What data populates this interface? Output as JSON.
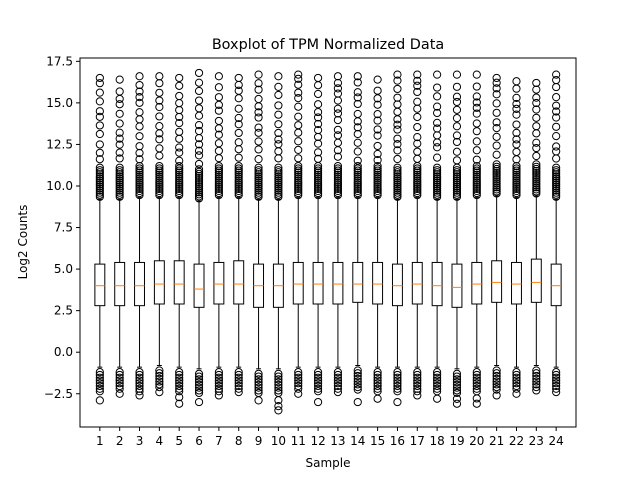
{
  "chart_data": {
    "type": "boxplot",
    "title": "Boxplot of TPM Normalized Data",
    "xlabel": "Sample",
    "ylabel": "Log2 Counts",
    "ylim": [
      -4.5,
      17.7
    ],
    "yticks": [
      -2.5,
      0.0,
      2.5,
      5.0,
      7.5,
      10.0,
      12.5,
      15.0,
      17.5
    ],
    "ytick_labels": [
      "−2.5",
      "0.0",
      "2.5",
      "5.0",
      "7.5",
      "10.0",
      "12.5",
      "15.0",
      "17.5"
    ],
    "categories": [
      "1",
      "2",
      "3",
      "4",
      "5",
      "6",
      "7",
      "8",
      "9",
      "10",
      "11",
      "12",
      "13",
      "14",
      "15",
      "16",
      "17",
      "18",
      "19",
      "20",
      "21",
      "22",
      "23",
      "24"
    ],
    "grid": false,
    "box_color": "#000000",
    "median_color": "#ff7f0e",
    "series": [
      {
        "q1": 2.8,
        "median": 4.0,
        "q3": 5.3,
        "whisker_low": -0.9,
        "whisker_high": 9.2,
        "flier_low_min": -2.9,
        "flier_high_max": 16.5
      },
      {
        "q1": 2.8,
        "median": 4.0,
        "q3": 5.4,
        "whisker_low": -0.9,
        "whisker_high": 9.2,
        "flier_low_min": -2.5,
        "flier_high_max": 16.4
      },
      {
        "q1": 2.8,
        "median": 4.0,
        "q3": 5.4,
        "whisker_low": -0.9,
        "whisker_high": 9.3,
        "flier_low_min": -2.6,
        "flier_high_max": 16.6
      },
      {
        "q1": 2.9,
        "median": 4.1,
        "q3": 5.5,
        "whisker_low": -0.8,
        "whisker_high": 9.3,
        "flier_low_min": -2.4,
        "flier_high_max": 16.6
      },
      {
        "q1": 2.9,
        "median": 4.1,
        "q3": 5.5,
        "whisker_low": -0.9,
        "whisker_high": 9.3,
        "flier_low_min": -3.1,
        "flier_high_max": 16.5
      },
      {
        "q1": 2.7,
        "median": 3.8,
        "q3": 5.3,
        "whisker_low": -1.0,
        "whisker_high": 9.1,
        "flier_low_min": -3.0,
        "flier_high_max": 16.8
      },
      {
        "q1": 2.9,
        "median": 4.1,
        "q3": 5.4,
        "whisker_low": -0.9,
        "whisker_high": 9.3,
        "flier_low_min": -2.6,
        "flier_high_max": 16.6
      },
      {
        "q1": 2.9,
        "median": 4.1,
        "q3": 5.5,
        "whisker_low": -0.9,
        "whisker_high": 9.3,
        "flier_low_min": -2.4,
        "flier_high_max": 16.5
      },
      {
        "q1": 2.7,
        "median": 4.0,
        "q3": 5.3,
        "whisker_low": -1.0,
        "whisker_high": 9.2,
        "flier_low_min": -2.9,
        "flier_high_max": 16.7
      },
      {
        "q1": 2.7,
        "median": 4.0,
        "q3": 5.3,
        "whisker_low": -1.0,
        "whisker_high": 9.2,
        "flier_low_min": -3.5,
        "flier_high_max": 16.6
      },
      {
        "q1": 2.9,
        "median": 4.1,
        "q3": 5.4,
        "whisker_low": -0.9,
        "whisker_high": 9.3,
        "flier_low_min": -2.5,
        "flier_high_max": 16.7
      },
      {
        "q1": 2.9,
        "median": 4.1,
        "q3": 5.4,
        "whisker_low": -0.9,
        "whisker_high": 9.3,
        "flier_low_min": -3.0,
        "flier_high_max": 16.5
      },
      {
        "q1": 2.9,
        "median": 4.1,
        "q3": 5.4,
        "whisker_low": -0.9,
        "whisker_high": 9.3,
        "flier_low_min": -2.4,
        "flier_high_max": 16.6
      },
      {
        "q1": 3.0,
        "median": 4.1,
        "q3": 5.4,
        "whisker_low": -0.8,
        "whisker_high": 9.3,
        "flier_low_min": -3.0,
        "flier_high_max": 16.6
      },
      {
        "q1": 2.9,
        "median": 4.1,
        "q3": 5.4,
        "whisker_low": -0.9,
        "whisker_high": 9.3,
        "flier_low_min": -2.8,
        "flier_high_max": 16.4
      },
      {
        "q1": 2.8,
        "median": 4.0,
        "q3": 5.3,
        "whisker_low": -0.9,
        "whisker_high": 9.2,
        "flier_low_min": -3.0,
        "flier_high_max": 16.7
      },
      {
        "q1": 2.9,
        "median": 4.1,
        "q3": 5.4,
        "whisker_low": -0.9,
        "whisker_high": 9.3,
        "flier_low_min": -2.6,
        "flier_high_max": 16.7
      },
      {
        "q1": 2.8,
        "median": 4.0,
        "q3": 5.4,
        "whisker_low": -0.9,
        "whisker_high": 9.2,
        "flier_low_min": -2.8,
        "flier_high_max": 16.7
      },
      {
        "q1": 2.7,
        "median": 3.9,
        "q3": 5.3,
        "whisker_low": -1.0,
        "whisker_high": 9.2,
        "flier_low_min": -3.1,
        "flier_high_max": 16.7
      },
      {
        "q1": 2.9,
        "median": 4.1,
        "q3": 5.4,
        "whisker_low": -0.9,
        "whisker_high": 9.3,
        "flier_low_min": -3.1,
        "flier_high_max": 16.7
      },
      {
        "q1": 3.0,
        "median": 4.2,
        "q3": 5.5,
        "whisker_low": -0.8,
        "whisker_high": 9.4,
        "flier_low_min": -2.6,
        "flier_high_max": 16.5
      },
      {
        "q1": 2.9,
        "median": 4.1,
        "q3": 5.4,
        "whisker_low": -0.9,
        "whisker_high": 9.3,
        "flier_low_min": -2.5,
        "flier_high_max": 16.3
      },
      {
        "q1": 3.0,
        "median": 4.2,
        "q3": 5.6,
        "whisker_low": -0.8,
        "whisker_high": 9.4,
        "flier_low_min": -2.3,
        "flier_high_max": 16.2
      },
      {
        "q1": 2.8,
        "median": 4.0,
        "q3": 5.3,
        "whisker_low": -0.9,
        "whisker_high": 9.2,
        "flier_low_min": -2.4,
        "flier_high_max": 16.7
      }
    ]
  }
}
